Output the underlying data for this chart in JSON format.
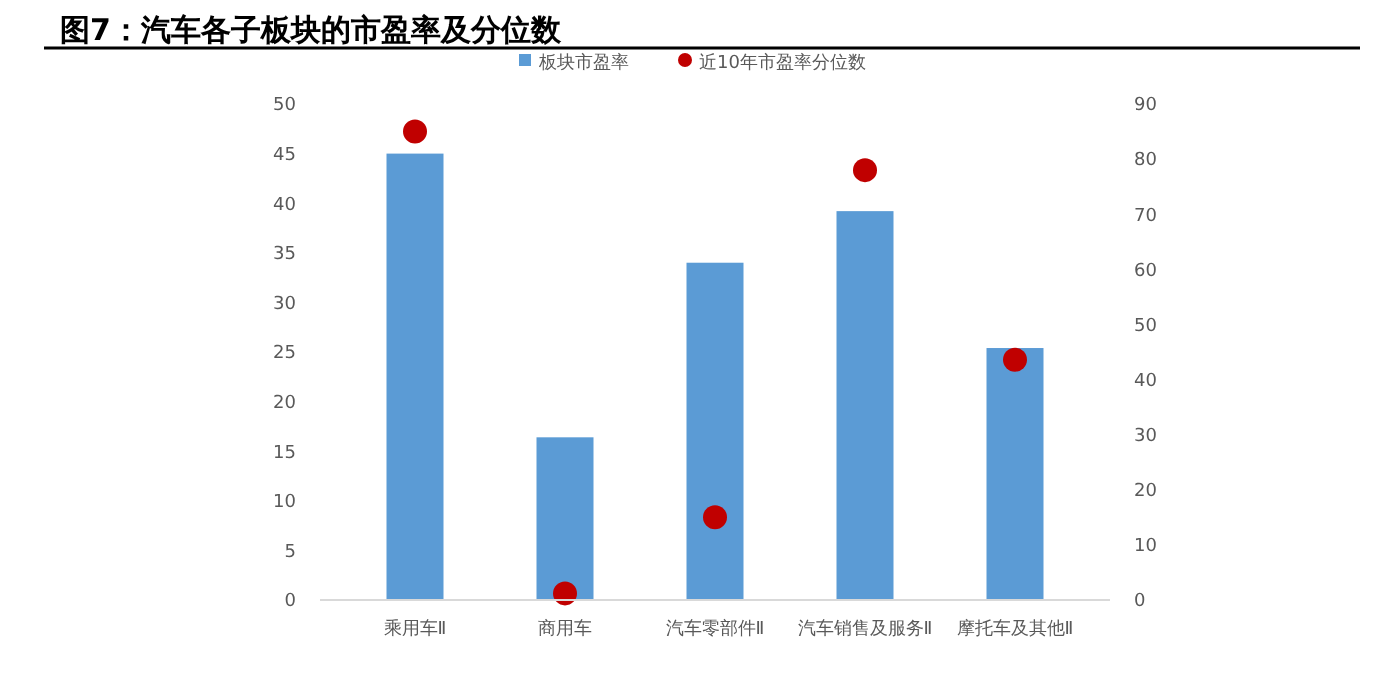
{
  "chart_data": {
    "type": "bar",
    "title": "图7：汽车各子板块的市盈率及分位数",
    "categories": [
      "乘用车Ⅱ",
      "商用车",
      "汽车零部件Ⅱ",
      "汽车销售及服务Ⅱ",
      "摩托车及其他Ⅱ"
    ],
    "series": [
      {
        "name": "板块市盈率",
        "color": "#5b9bd5",
        "values": [
          45,
          16.4,
          34,
          39.2,
          25.4
        ]
      },
      {
        "name": "近10年市盈率分位数",
        "type": "scatter",
        "axis": "y2",
        "color": "#c00000",
        "marker": "circle",
        "values": [
          85,
          1.2,
          15,
          78,
          43.6
        ]
      }
    ],
    "ylim": [
      0,
      50
    ],
    "yticks": [
      0,
      5,
      10,
      15,
      20,
      25,
      30,
      35,
      40,
      45,
      50
    ],
    "y2lim": [
      0,
      90
    ],
    "y2ticks": [
      0,
      10,
      20,
      30,
      40,
      50,
      60,
      70,
      80,
      90
    ],
    "grid": false,
    "legend": "top"
  }
}
